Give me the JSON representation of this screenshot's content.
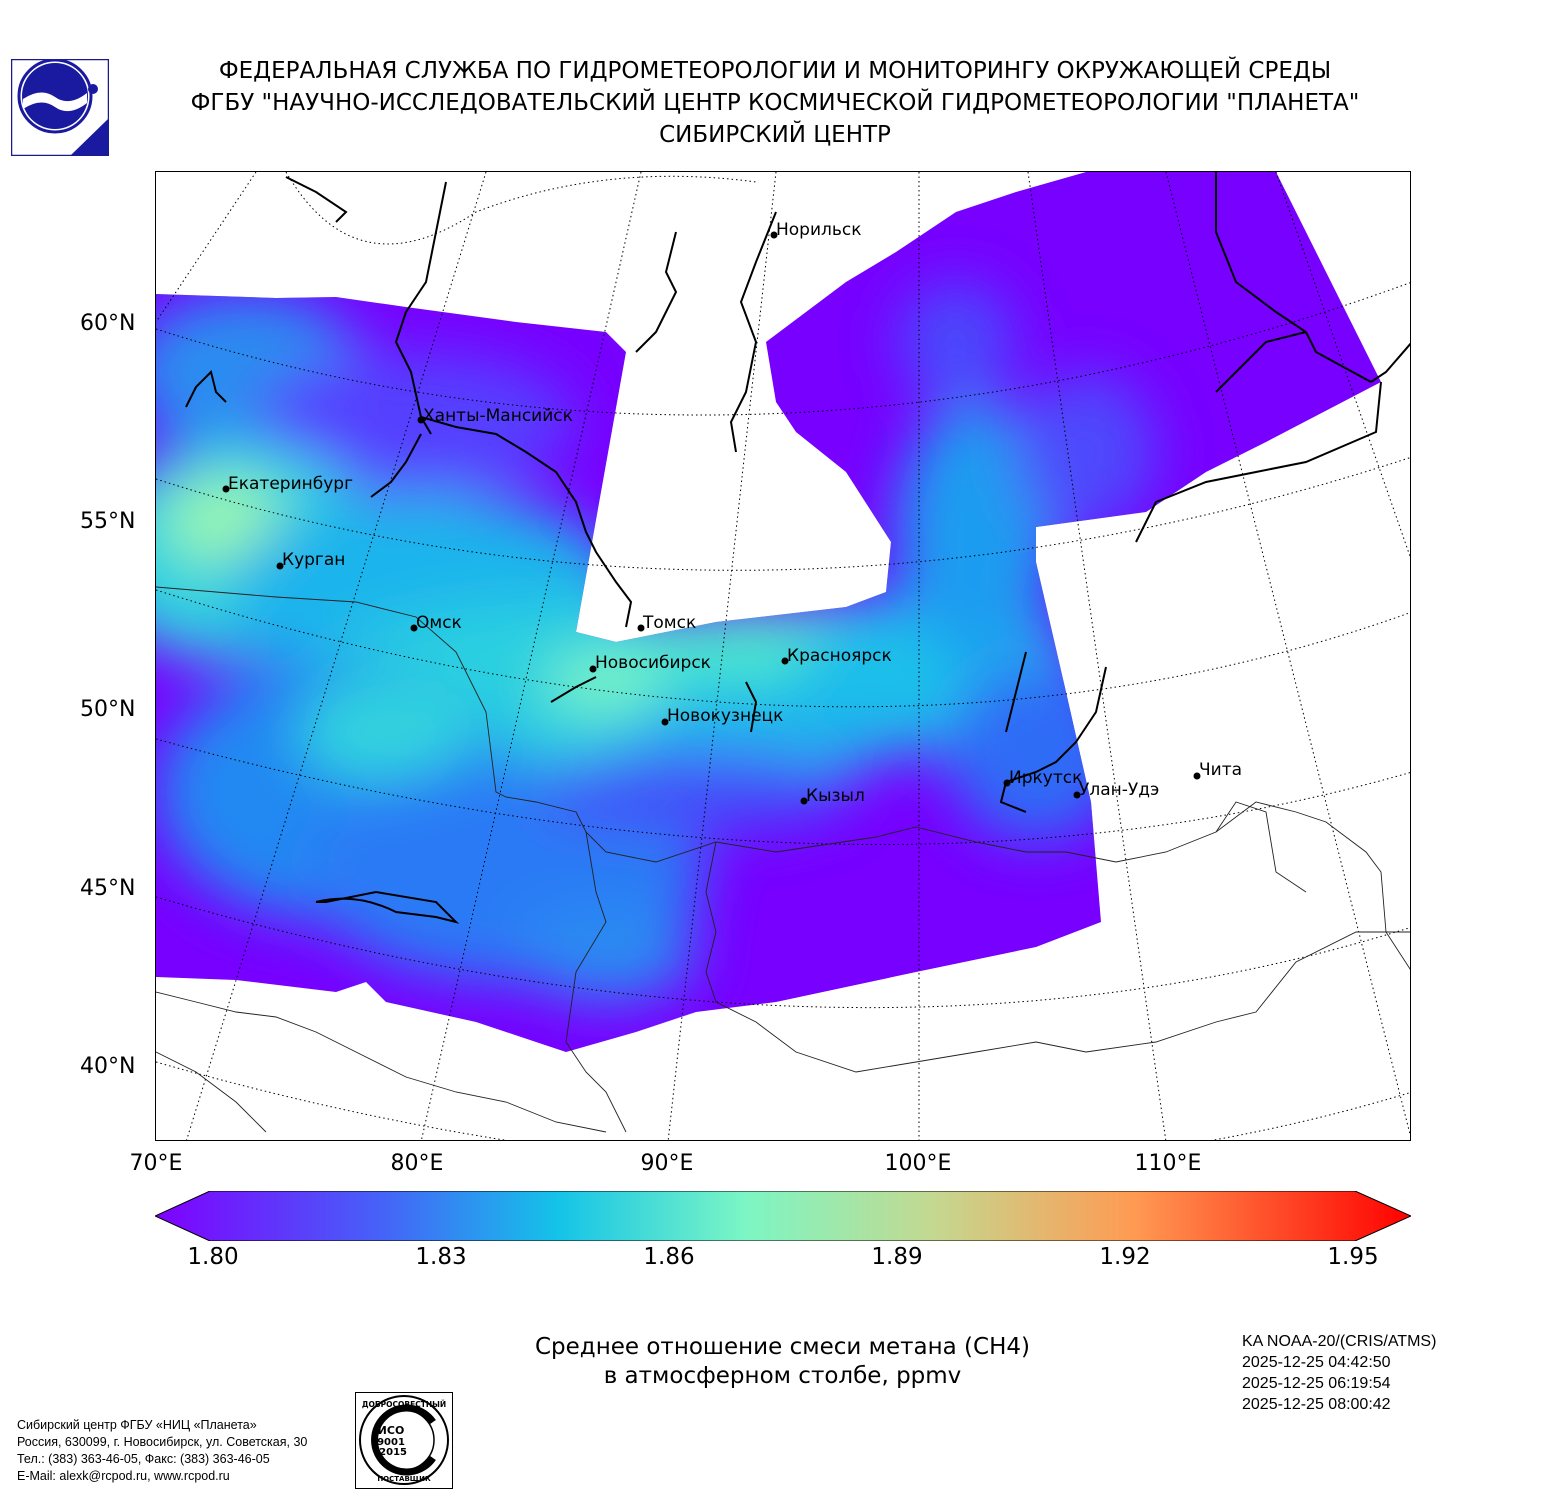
{
  "header": {
    "line1": "ФЕДЕРАЛЬНАЯ СЛУЖБА ПО ГИДРОМЕТЕОРОЛОГИИ И МОНИТОРИНГУ ОКРУЖАЮЩЕЙ СРЕДЫ",
    "line2": "ФГБУ \"НАУЧНО-ИССЛЕДОВАТЕЛЬСКИЙ ЦЕНТР КОСМИЧЕСКОЙ ГИДРОМЕТЕОРОЛОГИИ \"ПЛАНЕТА\"",
    "line3": "СИБИРСКИЙ ЦЕНТР"
  },
  "map": {
    "lat_labels": [
      "60°N",
      "55°N",
      "50°N",
      "45°N",
      "40°N"
    ],
    "lon_labels": [
      "70°E",
      "80°E",
      "90°E",
      "100°E",
      "110°E"
    ],
    "cities": [
      {
        "name": "Норильск"
      },
      {
        "name": "Ханты-Мансийск"
      },
      {
        "name": "Екатеринбург"
      },
      {
        "name": "Курган"
      },
      {
        "name": "Омск"
      },
      {
        "name": "Томск"
      },
      {
        "name": "Новосибирск"
      },
      {
        "name": "Красноярск"
      },
      {
        "name": "Новокузнецк"
      },
      {
        "name": "Кызыл"
      },
      {
        "name": "Иркутск"
      },
      {
        "name": "Улан-Удэ"
      },
      {
        "name": "Чита"
      }
    ]
  },
  "colorbar": {
    "ticks": [
      "1.80",
      "1.83",
      "1.86",
      "1.89",
      "1.92",
      "1.95"
    ],
    "min": 1.8,
    "max": 1.95,
    "colors": [
      "#7f00ff",
      "#4662f8",
      "#14c3e8",
      "#7cf6c4",
      "#c4d890",
      "#ff9a52",
      "#ff0000"
    ]
  },
  "caption": {
    "line1": "Среднее отношение смеси метана (CH4)",
    "line2": "в атмосферном столбе, ppmv"
  },
  "satellite": {
    "name": "KA NOAA-20/(CRIS/ATMS)",
    "times": [
      "2025-12-25 04:42:50",
      "2025-12-25 06:19:54",
      "2025-12-25 08:00:42"
    ]
  },
  "org": {
    "line1": "Сибирский центр ФГБУ «НИЦ «Планета»",
    "line2": "Россия, 630099, г. Новосибирск, ул. Советская, 30",
    "line3": "Тел.: (383) 363-46-05, Факс: (383) 363-46-05",
    "line4": "E-Mail: alexk@rcpod.ru, www.rcpod.ru"
  },
  "iso_badge": {
    "top_text": "ДОБРОСОВЕСТНЫЙ",
    "line1": "ИСО",
    "line2": "9001",
    "line3": "-2015",
    "bottom_text": "ПОСТАВЩИК"
  }
}
